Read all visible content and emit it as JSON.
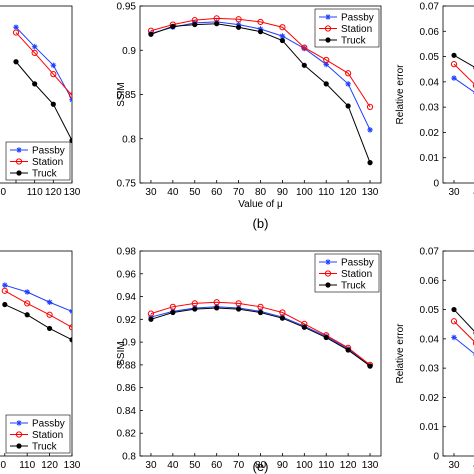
{
  "chart_data": [
    {
      "id": "a",
      "type": "line",
      "x": [
        90,
        100,
        110,
        120,
        130
      ],
      "series": [
        {
          "name": "Passby",
          "color": "#1f3fff",
          "marker": "star",
          "values": [
            null,
            0.926,
            0.904,
            0.883,
            0.844
          ]
        },
        {
          "name": "Station",
          "color": "#ff0000",
          "marker": "circle",
          "values": [
            null,
            0.92,
            0.897,
            0.873,
            0.849
          ]
        },
        {
          "name": "Truck",
          "color": "#000000",
          "marker": "dot",
          "values": [
            null,
            0.887,
            0.862,
            0.839,
            0.798
          ]
        }
      ],
      "tick_labels_x": [
        "0",
        "110",
        "120",
        "130"
      ],
      "legend": [
        "Passby",
        "Station",
        "Truck"
      ],
      "legend_position": "bottom-right"
    },
    {
      "id": "b",
      "type": "line",
      "x": [
        30,
        40,
        50,
        60,
        70,
        80,
        90,
        100,
        110,
        120,
        130
      ],
      "series": [
        {
          "name": "Passby",
          "color": "#1f3fff",
          "marker": "star",
          "values": [
            0.919,
            0.926,
            0.931,
            0.932,
            0.929,
            0.924,
            0.916,
            0.902,
            0.884,
            0.862,
            0.81
          ]
        },
        {
          "name": "Station",
          "color": "#ff0000",
          "marker": "circle",
          "values": [
            0.922,
            0.929,
            0.934,
            0.936,
            0.935,
            0.932,
            0.926,
            0.903,
            0.889,
            0.874,
            0.836
          ]
        },
        {
          "name": "Truck",
          "color": "#000000",
          "marker": "dot",
          "values": [
            0.918,
            0.927,
            0.929,
            0.93,
            0.926,
            0.921,
            0.911,
            0.883,
            0.862,
            0.837,
            0.773
          ]
        }
      ],
      "ylabel": "SSIM",
      "xlabel": "Value of μ",
      "ylim": [
        0.75,
        0.95
      ],
      "yticks": [
        "0.75",
        "0.8",
        "0.85",
        "0.9",
        "0.95"
      ],
      "xticks": [
        "30",
        "40",
        "50",
        "60",
        "70",
        "80",
        "90",
        "100",
        "110",
        "120",
        "130"
      ],
      "legend": [
        "Passby",
        "Station",
        "Truck"
      ],
      "legend_position": "top-right",
      "caption": "(b)"
    },
    {
      "id": "c",
      "type": "line",
      "x": [
        30,
        40
      ],
      "series": [
        {
          "name": "Passby",
          "color": "#1f3fff",
          "marker": "star",
          "values": [
            0.0415,
            0.0355
          ]
        },
        {
          "name": "Station",
          "color": "#ff0000",
          "marker": "circle",
          "values": [
            0.047,
            0.0385
          ]
        },
        {
          "name": "Truck",
          "color": "#000000",
          "marker": "dot",
          "values": [
            0.0505,
            0.0455
          ]
        }
      ],
      "ylabel": "Relative error",
      "ylim": [
        0,
        0.07
      ],
      "yticks": [
        "0",
        "0.01",
        "0.02",
        "0.03",
        "0.04",
        "0.05",
        "0.06",
        "0.07"
      ],
      "xticks": [
        "30",
        "4"
      ]
    },
    {
      "id": "d",
      "type": "line",
      "x": [
        100,
        110,
        120,
        130
      ],
      "series": [
        {
          "name": "Passby",
          "color": "#1f3fff",
          "marker": "star",
          "values": [
            0.95,
            0.944,
            0.935,
            0.927
          ]
        },
        {
          "name": "Station",
          "color": "#ff0000",
          "marker": "circle",
          "values": [
            0.945,
            0.934,
            0.924,
            0.913
          ]
        },
        {
          "name": "Truck",
          "color": "#000000",
          "marker": "dot",
          "values": [
            0.933,
            0.924,
            0.912,
            0.902
          ]
        }
      ],
      "tick_labels_x": [
        "0",
        "110",
        "120",
        "130"
      ],
      "legend": [
        "Passby",
        "Station",
        "Truck"
      ],
      "legend_position": "bottom-right"
    },
    {
      "id": "e",
      "type": "line",
      "x": [
        30,
        40,
        50,
        60,
        70,
        80,
        90,
        100,
        110,
        120,
        130
      ],
      "series": [
        {
          "name": "Passby",
          "color": "#1f3fff",
          "marker": "star",
          "values": [
            0.922,
            0.927,
            0.93,
            0.931,
            0.93,
            0.927,
            0.922,
            0.914,
            0.905,
            0.894,
            0.879
          ]
        },
        {
          "name": "Station",
          "color": "#ff0000",
          "marker": "circle",
          "values": [
            0.925,
            0.931,
            0.934,
            0.935,
            0.934,
            0.931,
            0.926,
            0.916,
            0.906,
            0.895,
            0.88
          ]
        },
        {
          "name": "Truck",
          "color": "#000000",
          "marker": "dot",
          "values": [
            0.92,
            0.926,
            0.929,
            0.93,
            0.929,
            0.926,
            0.921,
            0.913,
            0.904,
            0.893,
            0.879
          ]
        }
      ],
      "ylabel": "SSIM",
      "ylim": [
        0.8,
        0.98
      ],
      "yticks": [
        "0.8",
        "0.82",
        "0.84",
        "0.86",
        "0.88",
        "0.9",
        "0.92",
        "0.94",
        "0.96",
        "0.98"
      ],
      "xticks": [
        "30",
        "40",
        "50",
        "60",
        "70",
        "80",
        "90",
        "100",
        "110",
        "120",
        "130"
      ],
      "legend": [
        "Passby",
        "Station",
        "Truck"
      ],
      "legend_position": "top-right",
      "caption": "(e)"
    },
    {
      "id": "f",
      "type": "line",
      "x": [
        30,
        40
      ],
      "series": [
        {
          "name": "Passby",
          "color": "#1f3fff",
          "marker": "star",
          "values": [
            0.0405,
            0.0345
          ]
        },
        {
          "name": "Station",
          "color": "#ff0000",
          "marker": "circle",
          "values": [
            0.046,
            0.0385
          ]
        },
        {
          "name": "Truck",
          "color": "#000000",
          "marker": "dot",
          "values": [
            0.05,
            0.042
          ]
        }
      ],
      "ylabel": "Relative error",
      "ylim": [
        0,
        0.07
      ],
      "yticks": [
        "0",
        "0.01",
        "0.02",
        "0.03",
        "0.04",
        "0.05",
        "0.06",
        "0.07"
      ],
      "xticks": [
        "30",
        "4"
      ]
    }
  ]
}
